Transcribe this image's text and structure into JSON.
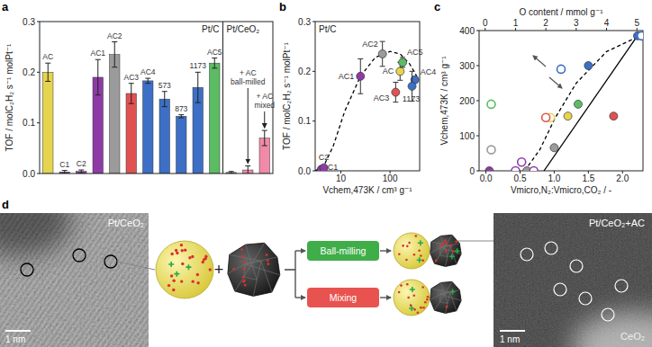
{
  "chart_data": [
    {
      "type": "bar",
      "title": "a",
      "ylabel": "TOF / molC₂H₂ s⁻¹ molPt⁻¹",
      "annotations": [
        "Pt/C",
        "Pt/CeO₂"
      ],
      "categories": [
        "AC",
        "C1",
        "C2",
        "AC1",
        "AC2",
        "AC3",
        "AC4",
        "573",
        "873",
        "1173",
        "AC5",
        null,
        "+ AC ball-milled",
        "+ AC mixed"
      ],
      "values": [
        0.2,
        0.003,
        0.004,
        0.19,
        0.235,
        0.158,
        0.183,
        0.147,
        0.113,
        0.17,
        0.218,
        0.002,
        0.007,
        0.07
      ],
      "errors": [
        0.018,
        0.003,
        0.003,
        0.035,
        0.025,
        0.02,
        0.005,
        0.015,
        0.003,
        0.03,
        0.01,
        0.002,
        0.008,
        0.015
      ],
      "colors": [
        "#e6d44e",
        "#8e3ba6",
        "#8e3ba6",
        "#8e3ba6",
        "#9b9b9b",
        "#e05252",
        "#3d6fc6",
        "#3d6fc6",
        "#3d6fc6",
        "#3d6fc6",
        "#5cbc64",
        "#777777",
        "#f08aa8",
        "#f08aa8"
      ],
      "ylim": [
        0,
        0.3
      ],
      "yticks": [
        {
          "value": 0,
          "label": "0.0"
        },
        0.1,
        0.2,
        0.3
      ]
    },
    {
      "type": "scatter",
      "title": "b",
      "subtitle": "Pt/C",
      "xlabel": "Vchem,473K / cm³ g⁻¹",
      "ylabel": "TOF / molC₂H₂ s⁻¹ molPt⁻¹",
      "log": "x",
      "xlim": [
        3,
        400
      ],
      "xticks": [
        10,
        100
      ],
      "ylim": [
        0,
        0.3
      ],
      "yticks": [
        {
          "value": 0,
          "label": "0.0"
        },
        0.1,
        0.2,
        0.3
      ],
      "series": [
        {
          "type": "line",
          "line_style": "dashed",
          "color": "#000000",
          "x": [
            3,
            4.5,
            7,
            12,
            25,
            50,
            100,
            160,
            250,
            350
          ],
          "values": [
            0,
            0.01,
            0.05,
            0.12,
            0.19,
            0.228,
            0.24,
            0.235,
            0.215,
            0.19
          ]
        },
        {
          "type": "scatter",
          "marker": "filled",
          "x": [
            160,
            4,
            4.5,
            25,
            70,
            130,
            320,
            280,
            180
          ],
          "values": [
            0.2,
            0.003,
            0.006,
            0.19,
            0.235,
            0.158,
            0.183,
            0.17,
            0.218
          ],
          "errors": [
            0.018,
            0.003,
            0.003,
            0.035,
            0.025,
            0.02,
            0.006,
            0.03,
            0.01
          ],
          "colors": [
            "#e6d44e",
            "#8e3ba6",
            "#8e3ba6",
            "#8e3ba6",
            "#9b9b9b",
            "#e05252",
            "#3d6fc6",
            "#3d6fc6",
            "#5cbc64"
          ],
          "labels": [
            "AC",
            "C1",
            "C2",
            "AC1",
            "AC2",
            "AC3",
            "AC4",
            "1173",
            "AC5"
          ]
        }
      ]
    },
    {
      "type": "scatter",
      "title": "c",
      "xlabel": "Vmicro,N₂:Vmicro,CO₂ / -",
      "x2label": "O content / mmol g⁻¹",
      "ylabel": "Vchem,473K / cm³ g⁻¹",
      "xlim": [
        -0.1,
        2.3
      ],
      "xticks": [
        {
          "value": 0,
          "label": "0.0"
        },
        0.5,
        {
          "value": 1,
          "label": "1.0"
        },
        1.5,
        {
          "value": 2,
          "label": "2.0"
        }
      ],
      "x2lim": [
        -0.2,
        5.2
      ],
      "x2ticks": [
        0,
        1,
        2,
        3,
        4,
        5
      ],
      "ylim": [
        0,
        400
      ],
      "yticks": [
        0,
        100,
        200,
        300,
        400
      ],
      "series": [
        {
          "type": "line",
          "line_style": "solid",
          "color": "#000000",
          "x": [
            0.85,
            2.2
          ],
          "values": [
            0,
            380
          ]
        },
        {
          "type": "line",
          "line_style": "dashed",
          "color": "#000000",
          "axis": "x2",
          "x": [
            1.3,
            1.8,
            2.3,
            3,
            4,
            5.1
          ],
          "values": [
            0,
            60,
            150,
            250,
            340,
            385
          ]
        },
        {
          "type": "scatter",
          "marker": "filled",
          "x": [
            0.05,
            0.6,
            1.0,
            1.2,
            1.35,
            1.5,
            1.87,
            2.22
          ],
          "values": [
            0,
            0,
            66,
            156,
            190,
            300,
            156,
            385
          ],
          "colors": [
            "#8e3ba6",
            "#9b9b9b",
            "#9b9b9b",
            "#e6d44e",
            "#5cbc64",
            "#3d6fc6",
            "#e05252",
            "#3d6fc6"
          ]
        },
        {
          "type": "scatter",
          "marker": "open",
          "axis": "x2",
          "x": [
            0.2,
            0.2,
            1.0,
            1.6,
            1.2,
            2.15,
            2.0,
            2.5,
            5.15
          ],
          "values": [
            190,
            60,
            0,
            0,
            25,
            152,
            152,
            290,
            385
          ],
          "colors": [
            "#5cbc64",
            "#9b9b9b",
            "#8e3ba6",
            "#8e3ba6",
            "#8e3ba6",
            "#e6d44e",
            "#e05252",
            "#3d6fc6",
            "#3d6fc6"
          ]
        }
      ]
    }
  ],
  "panel_d": {
    "title": "d",
    "left_image": {
      "label": "Pt/CeO₂",
      "scale_bar": "1 nm"
    },
    "schematic": {
      "plus": "+",
      "steps": [
        "Ball-milling",
        "Mixing"
      ]
    },
    "right_image": {
      "label": "Pt/CeO₂+AC",
      "support_label": "CeO₂",
      "scale_bar": "1 nm"
    }
  }
}
